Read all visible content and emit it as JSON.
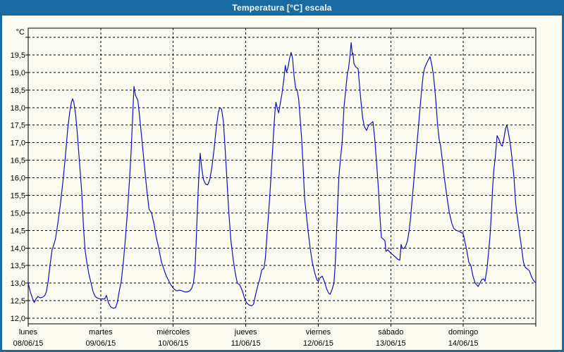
{
  "window": {
    "title": "Temperatura [°C] escala",
    "titlebar_color": "#1a6ba1",
    "border_color": "#1a6ba1",
    "content_background": "#fcfcf2"
  },
  "chart_data": {
    "type": "line",
    "title": "Temperatura [°C] escala",
    "y_unit_label": "°C",
    "grid": "dashed",
    "legend": "none",
    "line_color": "#0f0fc8",
    "axis_color": "#000000",
    "ylim": [
      11.84,
      20.26
    ],
    "y_gridlines": {
      "min": 12.0,
      "max": 20.0,
      "step": 0.5,
      "top_line_unlabeled": 20.0
    },
    "y_ticks": [
      {
        "value": 12.0,
        "label": "12,0"
      },
      {
        "value": 12.5,
        "label": "12,5"
      },
      {
        "value": 13.0,
        "label": "13,0"
      },
      {
        "value": 13.5,
        "label": "13,5"
      },
      {
        "value": 14.0,
        "label": "14,0"
      },
      {
        "value": 14.5,
        "label": "14,5"
      },
      {
        "value": 15.0,
        "label": "15,0"
      },
      {
        "value": 15.5,
        "label": "15,5"
      },
      {
        "value": 16.0,
        "label": "16,0"
      },
      {
        "value": 16.5,
        "label": "16,5"
      },
      {
        "value": 17.0,
        "label": "17,0"
      },
      {
        "value": 17.5,
        "label": "17,5"
      },
      {
        "value": 18.0,
        "label": "18,0"
      },
      {
        "value": 18.5,
        "label": "18,5"
      },
      {
        "value": 19.0,
        "label": "19,0"
      },
      {
        "value": 19.5,
        "label": "19,5"
      }
    ],
    "x_axis": {
      "hours_total": 168,
      "day_boundary_hours": [
        0,
        24,
        48,
        72,
        96,
        120,
        144,
        168
      ],
      "days": [
        {
          "name": "lunes",
          "date": "08/06/15"
        },
        {
          "name": "martes",
          "date": "09/06/15"
        },
        {
          "name": "miércoles",
          "date": "10/06/15"
        },
        {
          "name": "jueves",
          "date": "11/06/15"
        },
        {
          "name": "viernes",
          "date": "12/06/15"
        },
        {
          "name": "sábado",
          "date": "13/06/15"
        },
        {
          "name": "domingo",
          "date": "14/06/15"
        }
      ]
    },
    "series": [
      {
        "name": "Temperatura",
        "color": "#0f0fc8",
        "x_unit": "hours_from_monday_00h",
        "points": [
          [
            0,
            13.0
          ],
          [
            0.7,
            12.75
          ],
          [
            1.5,
            12.55
          ],
          [
            2,
            12.45
          ],
          [
            2.6,
            12.55
          ],
          [
            3.2,
            12.62
          ],
          [
            4,
            12.58
          ],
          [
            4.8,
            12.6
          ],
          [
            5.5,
            12.65
          ],
          [
            6,
            12.75
          ],
          [
            6.6,
            13.05
          ],
          [
            7.2,
            13.5
          ],
          [
            7.9,
            13.95
          ],
          [
            8.3,
            14.05
          ],
          [
            9,
            14.25
          ],
          [
            9.8,
            14.7
          ],
          [
            10.6,
            15.2
          ],
          [
            11.5,
            15.9
          ],
          [
            12.3,
            16.6
          ],
          [
            13.1,
            17.4
          ],
          [
            13.8,
            17.9
          ],
          [
            14.3,
            18.15
          ],
          [
            14.7,
            18.25
          ],
          [
            15.1,
            18.15
          ],
          [
            15.7,
            17.8
          ],
          [
            16.3,
            17.2
          ],
          [
            17,
            16.4
          ],
          [
            17.7,
            15.6
          ],
          [
            18.3,
            14.6
          ],
          [
            18.8,
            13.95
          ],
          [
            19.4,
            13.6
          ],
          [
            20,
            13.3
          ],
          [
            20.8,
            13.0
          ],
          [
            21.5,
            12.75
          ],
          [
            22.2,
            12.62
          ],
          [
            23,
            12.57
          ],
          [
            23.8,
            12.55
          ],
          [
            24.5,
            12.55
          ],
          [
            25.3,
            12.55
          ],
          [
            25.9,
            12.65
          ],
          [
            26.5,
            12.45
          ],
          [
            27.3,
            12.32
          ],
          [
            28.2,
            12.28
          ],
          [
            28.9,
            12.3
          ],
          [
            29.5,
            12.45
          ],
          [
            30.2,
            12.8
          ],
          [
            30.8,
            13.05
          ],
          [
            31.5,
            13.6
          ],
          [
            32.2,
            14.3
          ],
          [
            32.9,
            15.1
          ],
          [
            33.5,
            15.9
          ],
          [
            34.1,
            16.8
          ],
          [
            34.6,
            17.8
          ],
          [
            35,
            18.6
          ],
          [
            35.5,
            18.35
          ],
          [
            36.3,
            18.2
          ],
          [
            36.8,
            17.8
          ],
          [
            37.5,
            17.2
          ],
          [
            38.3,
            16.5
          ],
          [
            39.2,
            15.7
          ],
          [
            40,
            15.1
          ],
          [
            40.8,
            15.0
          ],
          [
            41.6,
            14.7
          ],
          [
            42.4,
            14.3
          ],
          [
            43.2,
            14.0
          ],
          [
            44.1,
            13.6
          ],
          [
            44.9,
            13.4
          ],
          [
            45.7,
            13.2
          ],
          [
            46.6,
            13.05
          ],
          [
            47.2,
            12.95
          ],
          [
            47.8,
            12.88
          ],
          [
            48.4,
            12.82
          ],
          [
            49.2,
            12.78
          ],
          [
            50,
            12.8
          ],
          [
            50.9,
            12.78
          ],
          [
            51.8,
            12.75
          ],
          [
            52.7,
            12.75
          ],
          [
            53.5,
            12.78
          ],
          [
            54.1,
            12.85
          ],
          [
            54.7,
            13.0
          ],
          [
            55.2,
            13.4
          ],
          [
            55.6,
            14.2
          ],
          [
            56,
            15.1
          ],
          [
            56.4,
            15.9
          ],
          [
            56.9,
            16.7
          ],
          [
            57.4,
            16.3
          ],
          [
            58,
            15.95
          ],
          [
            58.7,
            15.82
          ],
          [
            59.4,
            15.8
          ],
          [
            60.1,
            15.95
          ],
          [
            60.8,
            16.3
          ],
          [
            61.5,
            16.8
          ],
          [
            62.2,
            17.4
          ],
          [
            62.9,
            17.85
          ],
          [
            63.4,
            18.0
          ],
          [
            64,
            17.95
          ],
          [
            64.6,
            17.6
          ],
          [
            65.2,
            16.8
          ],
          [
            65.8,
            15.9
          ],
          [
            66.4,
            15.0
          ],
          [
            67.1,
            14.2
          ],
          [
            67.8,
            13.7
          ],
          [
            68.5,
            13.3
          ],
          [
            69.2,
            13.0
          ],
          [
            70,
            12.95
          ],
          [
            70.8,
            12.8
          ],
          [
            71.5,
            12.6
          ],
          [
            72.2,
            12.45
          ],
          [
            73,
            12.38
          ],
          [
            74,
            12.35
          ],
          [
            74.6,
            12.4
          ],
          [
            75.2,
            12.65
          ],
          [
            75.9,
            12.9
          ],
          [
            76.6,
            13.1
          ],
          [
            77.3,
            13.38
          ],
          [
            78,
            13.42
          ],
          [
            78.5,
            13.7
          ],
          [
            78.9,
            14.2
          ],
          [
            79.4,
            14.8
          ],
          [
            79.9,
            15.4
          ],
          [
            80.4,
            16.1
          ],
          [
            80.9,
            16.8
          ],
          [
            81.3,
            17.4
          ],
          [
            81.7,
            17.9
          ],
          [
            82,
            18.15
          ],
          [
            82.5,
            17.95
          ],
          [
            82.9,
            17.85
          ],
          [
            83.4,
            18.1
          ],
          [
            84,
            18.4
          ],
          [
            84.6,
            18.8
          ],
          [
            85.1,
            19.2
          ],
          [
            85.5,
            19.0
          ],
          [
            86,
            19.15
          ],
          [
            86.5,
            19.4
          ],
          [
            87,
            19.57
          ],
          [
            87.5,
            19.4
          ],
          [
            88,
            18.9
          ],
          [
            88.5,
            18.55
          ],
          [
            89,
            18.5
          ],
          [
            89.5,
            18.25
          ],
          [
            90,
            17.7
          ],
          [
            90.5,
            17.1
          ],
          [
            91,
            16.3
          ],
          [
            91.5,
            15.4
          ],
          [
            92,
            15.0
          ],
          [
            92.6,
            14.5
          ],
          [
            93.3,
            14.0
          ],
          [
            94,
            13.6
          ],
          [
            94.8,
            13.3
          ],
          [
            95.5,
            13.1
          ],
          [
            96,
            13.05
          ],
          [
            96.6,
            13.15
          ],
          [
            97.3,
            13.2
          ],
          [
            98,
            13.05
          ],
          [
            98.7,
            12.85
          ],
          [
            99.4,
            12.72
          ],
          [
            99.9,
            12.68
          ],
          [
            100.5,
            12.8
          ],
          [
            101.2,
            13.0
          ],
          [
            101.6,
            13.5
          ],
          [
            102,
            14.3
          ],
          [
            102.4,
            15.2
          ],
          [
            102.8,
            16.0
          ],
          [
            103.3,
            16.5
          ],
          [
            103.9,
            17.0
          ],
          [
            104.5,
            18.0
          ],
          [
            105.1,
            18.5
          ],
          [
            105.6,
            18.95
          ],
          [
            106,
            19.1
          ],
          [
            106.4,
            19.4
          ],
          [
            106.9,
            19.85
          ],
          [
            107.3,
            19.5
          ],
          [
            107.5,
            19.55
          ],
          [
            107.8,
            19.25
          ],
          [
            108.3,
            19.17
          ],
          [
            109.2,
            19.1
          ],
          [
            109.7,
            18.6
          ],
          [
            110.1,
            18.2
          ],
          [
            110.7,
            17.7
          ],
          [
            111.3,
            17.45
          ],
          [
            112,
            17.35
          ],
          [
            112.7,
            17.5
          ],
          [
            113.5,
            17.55
          ],
          [
            114.1,
            17.6
          ],
          [
            114.7,
            17.1
          ],
          [
            115.4,
            16.3
          ],
          [
            115.9,
            15.7
          ],
          [
            116.4,
            14.9
          ],
          [
            116.9,
            14.3
          ],
          [
            117.6,
            14.25
          ],
          [
            118.1,
            14.2
          ],
          [
            118.4,
            13.9
          ],
          [
            119,
            13.95
          ],
          [
            119.7,
            13.88
          ],
          [
            120.5,
            13.82
          ],
          [
            121.4,
            13.75
          ],
          [
            122.3,
            13.68
          ],
          [
            123,
            13.65
          ],
          [
            123.4,
            14.1
          ],
          [
            123.8,
            14.0
          ],
          [
            124.3,
            13.98
          ],
          [
            124.9,
            14.05
          ],
          [
            125.5,
            14.2
          ],
          [
            126,
            14.45
          ],
          [
            126.5,
            14.8
          ],
          [
            127,
            15.3
          ],
          [
            127.6,
            15.9
          ],
          [
            128.2,
            16.5
          ],
          [
            128.8,
            17.1
          ],
          [
            129.4,
            17.7
          ],
          [
            130.1,
            18.4
          ],
          [
            130.7,
            18.9
          ],
          [
            131.1,
            19.1
          ],
          [
            131.8,
            19.25
          ],
          [
            132.4,
            19.35
          ],
          [
            133,
            19.45
          ],
          [
            133.6,
            19.2
          ],
          [
            134.1,
            18.95
          ],
          [
            134.6,
            18.5
          ],
          [
            135,
            18.1
          ],
          [
            135.5,
            17.5
          ],
          [
            136,
            17.1
          ],
          [
            136.5,
            16.9
          ],
          [
            137.2,
            16.4
          ],
          [
            137.9,
            15.9
          ],
          [
            138.6,
            15.45
          ],
          [
            139.4,
            15.0
          ],
          [
            140.2,
            14.7
          ],
          [
            140.9,
            14.55
          ],
          [
            141.7,
            14.5
          ],
          [
            142.4,
            14.48
          ],
          [
            143.2,
            14.45
          ],
          [
            144,
            14.4
          ],
          [
            144.6,
            14.15
          ],
          [
            145.1,
            13.95
          ],
          [
            145.8,
            13.6
          ],
          [
            146.5,
            13.5
          ],
          [
            147.2,
            13.2
          ],
          [
            147.9,
            13.0
          ],
          [
            148.5,
            12.95
          ],
          [
            148.9,
            12.9
          ],
          [
            149.5,
            13.0
          ],
          [
            150.1,
            13.1
          ],
          [
            150.7,
            13.12
          ],
          [
            151.2,
            13.05
          ],
          [
            151.9,
            13.45
          ],
          [
            152.4,
            13.9
          ],
          [
            152.9,
            14.4
          ],
          [
            153.3,
            15.0
          ],
          [
            153.7,
            15.7
          ],
          [
            154.1,
            16.2
          ],
          [
            154.6,
            16.6
          ],
          [
            155.2,
            17.2
          ],
          [
            155.8,
            17.1
          ],
          [
            156.4,
            16.95
          ],
          [
            156.9,
            16.9
          ],
          [
            157.4,
            17.1
          ],
          [
            158,
            17.4
          ],
          [
            158.4,
            17.5
          ],
          [
            158.9,
            17.3
          ],
          [
            159.5,
            17.0
          ],
          [
            160.2,
            16.5
          ],
          [
            160.8,
            16.0
          ],
          [
            161.3,
            15.3
          ],
          [
            161.7,
            15.0
          ],
          [
            162.2,
            14.7
          ],
          [
            162.8,
            14.3
          ],
          [
            163.3,
            14.0
          ],
          [
            163.9,
            13.6
          ],
          [
            164.5,
            13.45
          ],
          [
            165.2,
            13.4
          ],
          [
            165.9,
            13.35
          ],
          [
            166.5,
            13.2
          ],
          [
            167.2,
            13.08
          ],
          [
            168,
            13.0
          ]
        ]
      }
    ]
  }
}
